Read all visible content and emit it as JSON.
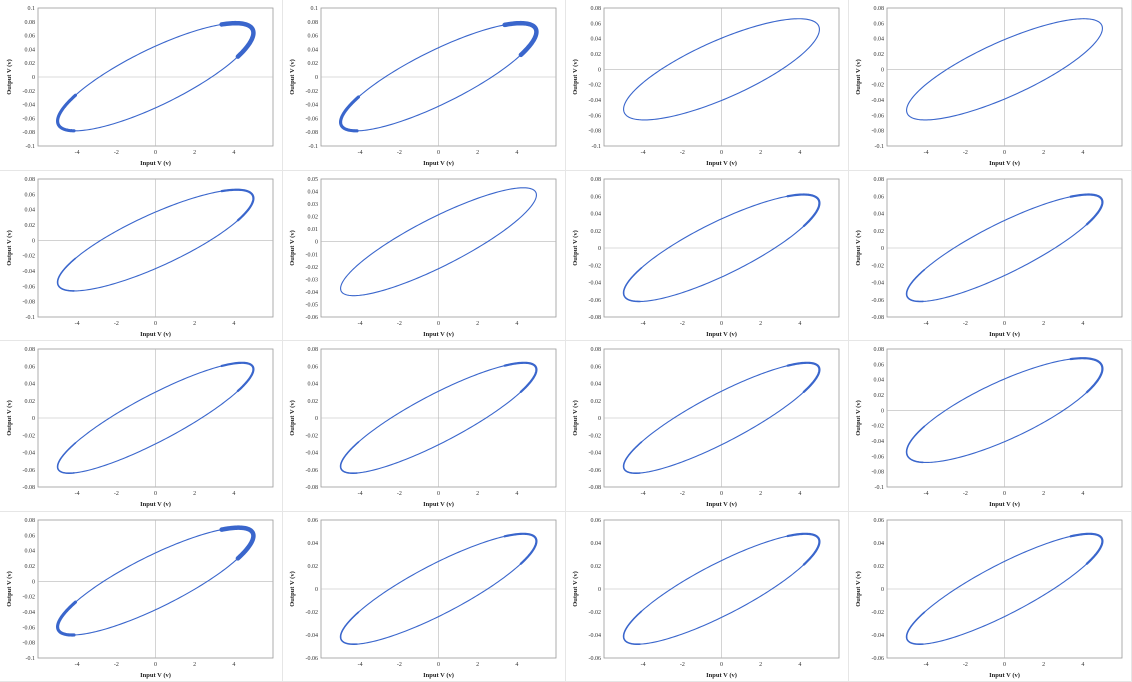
{
  "chart_data": [
    {
      "type": "line",
      "xlabel": "Input V (v)",
      "ylabel": "Output V (v)",
      "xlim": [
        -6,
        6
      ],
      "ylim": [
        -0.1,
        0.1
      ],
      "xticks": [
        -4,
        -2,
        0,
        2,
        4
      ],
      "yticks": [
        "0.1",
        "0.08",
        "0.06",
        "0.04",
        "0.02",
        "0",
        "-0.02",
        "-0.04",
        "-0.06",
        "-0.08",
        "-0.1"
      ],
      "series": [
        {
          "amplitude_x": 5,
          "amplitude_y": 0.078,
          "phase_lag_deg": 35,
          "color": "#3a66cc",
          "band_thickness": "thick"
        }
      ]
    },
    {
      "type": "line",
      "xlabel": "Input V (v)",
      "ylabel": "Output V (v)",
      "xlim": [
        -6,
        6
      ],
      "ylim": [
        -0.1,
        0.1
      ],
      "xticks": [
        -4,
        -2,
        0,
        2,
        4
      ],
      "yticks": [
        "0.1",
        "0.08",
        "0.06",
        "0.04",
        "0.02",
        "0",
        "-0.02",
        "-0.04",
        "-0.06",
        "-0.08",
        "-0.1"
      ],
      "series": [
        {
          "amplitude_x": 5,
          "amplitude_y": 0.078,
          "phase_lag_deg": 33,
          "color": "#3a66cc",
          "band_thickness": "thick"
        }
      ]
    },
    {
      "type": "line",
      "xlabel": "Input V (v)",
      "ylabel": "Output V (v)",
      "xlim": [
        -6,
        6
      ],
      "ylim": [
        -0.1,
        0.08
      ],
      "xticks": [
        -4,
        -2,
        0,
        2,
        4
      ],
      "yticks": [
        "0.08",
        "0.06",
        "0.04",
        "0.02",
        "0",
        "-0.02",
        "-0.04",
        "-0.06",
        "-0.08",
        "-0.1"
      ],
      "series": [
        {
          "amplitude_x": 5,
          "amplitude_y": 0.066,
          "phase_lag_deg": 38,
          "color": "#3a66cc",
          "band_thickness": "thin"
        }
      ]
    },
    {
      "type": "line",
      "xlabel": "Input V (v)",
      "ylabel": "Output V (v)",
      "xlim": [
        -6,
        6
      ],
      "ylim": [
        -0.1,
        0.08
      ],
      "xticks": [
        -4,
        -2,
        0,
        2,
        4
      ],
      "yticks": [
        "0.08",
        "0.06",
        "0.04",
        "0.02",
        "0",
        "-0.02",
        "-0.04",
        "-0.06",
        "-0.08",
        "-0.1"
      ],
      "series": [
        {
          "amplitude_x": 5,
          "amplitude_y": 0.066,
          "phase_lag_deg": 36,
          "color": "#3a66cc",
          "band_thickness": "thin"
        }
      ]
    },
    {
      "type": "line",
      "xlabel": "Input V (v)",
      "ylabel": "Output V (v)",
      "xlim": [
        -6,
        6
      ],
      "ylim": [
        -0.1,
        0.08
      ],
      "xticks": [
        -4,
        -2,
        0,
        2,
        4
      ],
      "yticks": [
        "0.08",
        "0.06",
        "0.04",
        "0.02",
        "0",
        "-0.02",
        "-0.04",
        "-0.06",
        "-0.08",
        "-0.1"
      ],
      "series": [
        {
          "amplitude_x": 5,
          "amplitude_y": 0.066,
          "phase_lag_deg": 34,
          "color": "#3a66cc",
          "band_thickness": "medium"
        }
      ]
    },
    {
      "type": "line",
      "xlabel": "Input V (v)",
      "ylabel": "Output V (v)",
      "xlim": [
        -6,
        6
      ],
      "ylim": [
        -0.06,
        0.05
      ],
      "xticks": [
        -4,
        -2,
        0,
        2,
        4
      ],
      "yticks": [
        "0.05",
        "0.04",
        "0.03",
        "0.02",
        "0.01",
        "0",
        "-0.01",
        "-0.02",
        "-0.03",
        "-0.04",
        "-0.05",
        "-0.06"
      ],
      "series": [
        {
          "amplitude_x": 5,
          "amplitude_y": 0.043,
          "phase_lag_deg": 30,
          "color": "#3a66cc",
          "band_thickness": "thin"
        }
      ]
    },
    {
      "type": "line",
      "xlabel": "Input V (v)",
      "ylabel": "Output V (v)",
      "xlim": [
        -6,
        6
      ],
      "ylim": [
        -0.08,
        0.08
      ],
      "xticks": [
        -4,
        -2,
        0,
        2,
        4
      ],
      "yticks": [
        "0.08",
        "0.06",
        "0.04",
        "0.02",
        "0",
        "-0.02",
        "-0.04",
        "-0.06",
        "-0.08"
      ],
      "series": [
        {
          "amplitude_x": 5,
          "amplitude_y": 0.062,
          "phase_lag_deg": 33,
          "color": "#3a66cc",
          "band_thickness": "medium"
        }
      ]
    },
    {
      "type": "line",
      "xlabel": "Input V (v)",
      "ylabel": "Output V (v)",
      "xlim": [
        -6,
        6
      ],
      "ylim": [
        -0.08,
        0.08
      ],
      "xticks": [
        -4,
        -2,
        0,
        2,
        4
      ],
      "yticks": [
        "0.08",
        "0.06",
        "0.04",
        "0.02",
        "0",
        "-0.02",
        "-0.04",
        "-0.06",
        "-0.08"
      ],
      "series": [
        {
          "amplitude_x": 5,
          "amplitude_y": 0.062,
          "phase_lag_deg": 31,
          "color": "#3a66cc",
          "band_thickness": "medium"
        }
      ]
    },
    {
      "type": "line",
      "xlabel": "Input V (v)",
      "ylabel": "Output V (v)",
      "xlim": [
        -6,
        6
      ],
      "ylim": [
        -0.08,
        0.08
      ],
      "xticks": [
        -4,
        -2,
        0,
        2,
        4
      ],
      "yticks": [
        "0.08",
        "0.06",
        "0.04",
        "0.02",
        "0",
        "-0.02",
        "-0.04",
        "-0.06",
        "-0.08"
      ],
      "series": [
        {
          "amplitude_x": 5,
          "amplitude_y": 0.064,
          "phase_lag_deg": 28,
          "color": "#3a66cc",
          "band_thickness": "medium"
        }
      ]
    },
    {
      "type": "line",
      "xlabel": "Input V (v)",
      "ylabel": "Output V (v)",
      "xlim": [
        -6,
        6
      ],
      "ylim": [
        -0.08,
        0.08
      ],
      "xticks": [
        -4,
        -2,
        0,
        2,
        4
      ],
      "yticks": [
        "0.08",
        "0.06",
        "0.04",
        "0.02",
        "0",
        "-0.02",
        "-0.04",
        "-0.06",
        "-0.08"
      ],
      "series": [
        {
          "amplitude_x": 5,
          "amplitude_y": 0.064,
          "phase_lag_deg": 29,
          "color": "#3a66cc",
          "band_thickness": "medium"
        }
      ]
    },
    {
      "type": "line",
      "xlabel": "Input V (v)",
      "ylabel": "Output V (v)",
      "xlim": [
        -6,
        6
      ],
      "ylim": [
        -0.08,
        0.08
      ],
      "xticks": [
        -4,
        -2,
        0,
        2,
        4
      ],
      "yticks": [
        "0.08",
        "0.06",
        "0.04",
        "0.02",
        "0",
        "-0.02",
        "-0.04",
        "-0.06",
        "-0.08"
      ],
      "series": [
        {
          "amplitude_x": 5,
          "amplitude_y": 0.064,
          "phase_lag_deg": 29,
          "color": "#3a66cc",
          "band_thickness": "medium"
        }
      ]
    },
    {
      "type": "line",
      "xlabel": "Input V (v)",
      "ylabel": "Output V (v)",
      "xlim": [
        -6,
        6
      ],
      "ylim": [
        -0.1,
        0.08
      ],
      "xticks": [
        -4,
        -2,
        0,
        2,
        4
      ],
      "yticks": [
        "0.08",
        "0.06",
        "0.04",
        "0.02",
        "0",
        "-0.02",
        "-0.04",
        "-0.06",
        "-0.08",
        "-0.1"
      ],
      "series": [
        {
          "amplitude_x": 5,
          "amplitude_y": 0.068,
          "phase_lag_deg": 37,
          "color": "#3a66cc",
          "band_thickness": "medium"
        }
      ]
    },
    {
      "type": "line",
      "xlabel": "Input V (v)",
      "ylabel": "Output V (v)",
      "xlim": [
        -6,
        6
      ],
      "ylim": [
        -0.1,
        0.08
      ],
      "xticks": [
        -4,
        -2,
        0,
        2,
        4
      ],
      "yticks": [
        "0.08",
        "0.06",
        "0.04",
        "0.02",
        "0",
        "-0.02",
        "-0.04",
        "-0.06",
        "-0.08",
        "-0.1"
      ],
      "series": [
        {
          "amplitude_x": 5,
          "amplitude_y": 0.07,
          "phase_lag_deg": 32,
          "color": "#3a66cc",
          "band_thickness": "thick"
        }
      ]
    },
    {
      "type": "line",
      "xlabel": "Input V (v)",
      "ylabel": "Output V (v)",
      "xlim": [
        -6,
        6
      ],
      "ylim": [
        -0.06,
        0.06
      ],
      "xticks": [
        -4,
        -2,
        0,
        2,
        4
      ],
      "yticks": [
        "0.06",
        "0.04",
        "0.02",
        "0",
        "-0.02",
        "-0.04",
        "-0.06"
      ],
      "series": [
        {
          "amplitude_x": 5,
          "amplitude_y": 0.048,
          "phase_lag_deg": 30,
          "color": "#3a66cc",
          "band_thickness": "medium"
        }
      ]
    },
    {
      "type": "line",
      "xlabel": "Input V (v)",
      "ylabel": "Output V (v)",
      "xlim": [
        -6,
        6
      ],
      "ylim": [
        -0.06,
        0.06
      ],
      "xticks": [
        -4,
        -2,
        0,
        2,
        4
      ],
      "yticks": [
        "0.06",
        "0.04",
        "0.02",
        "0",
        "-0.02",
        "-0.04",
        "-0.06"
      ],
      "series": [
        {
          "amplitude_x": 5,
          "amplitude_y": 0.048,
          "phase_lag_deg": 31,
          "color": "#3a66cc",
          "band_thickness": "medium"
        }
      ]
    },
    {
      "type": "line",
      "xlabel": "Input V (v)",
      "ylabel": "Output V (v)",
      "xlim": [
        -6,
        6
      ],
      "ylim": [
        -0.06,
        0.06
      ],
      "xticks": [
        -4,
        -2,
        0,
        2,
        4
      ],
      "yticks": [
        "0.06",
        "0.04",
        "0.02",
        "0",
        "-0.02",
        "-0.04",
        "-0.06"
      ],
      "series": [
        {
          "amplitude_x": 5,
          "amplitude_y": 0.048,
          "phase_lag_deg": 30,
          "color": "#3a66cc",
          "band_thickness": "medium"
        }
      ]
    }
  ]
}
